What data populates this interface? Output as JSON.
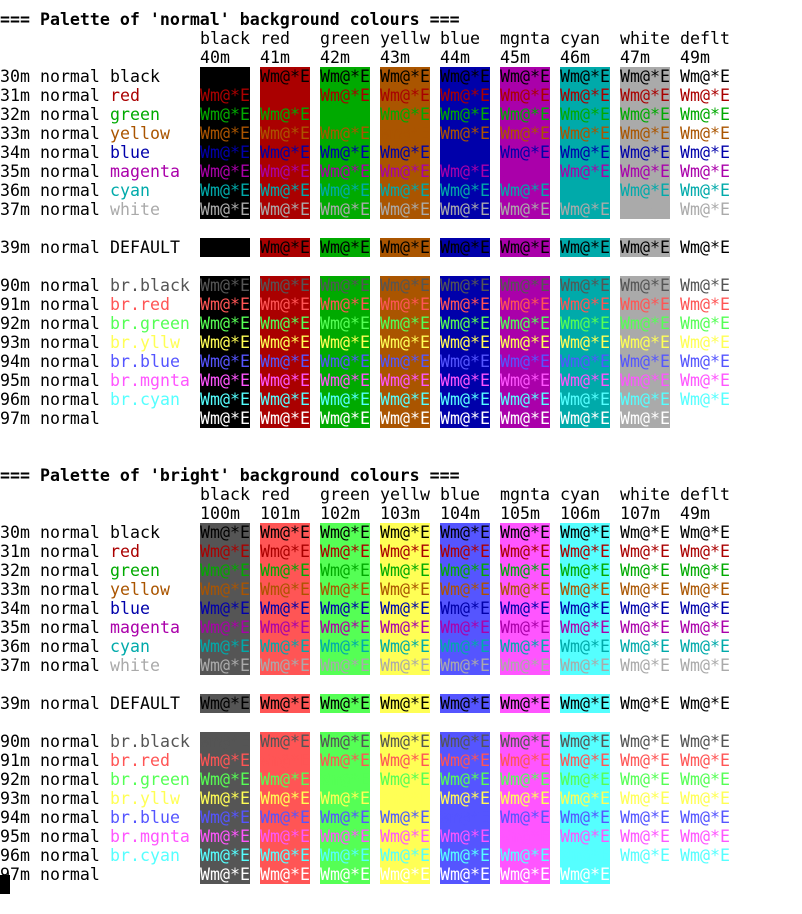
{
  "colors": {
    "palette": {
      "black": "#000000",
      "red": "#aa0000",
      "green": "#00aa00",
      "yellow": "#aa5500",
      "blue": "#0000aa",
      "magenta": "#aa00aa",
      "cyan": "#00aaaa",
      "white": "#aaaaaa",
      "br.black": "#555555",
      "br.red": "#ff5555",
      "br.green": "#55ff55",
      "br.yellow": "#ffff55",
      "br.blue": "#5555ff",
      "br.magenta": "#ff55ff",
      "br.cyan": "#55ffff",
      "br.white": "#ffffff",
      "default_fg": "#000000",
      "default_bg": "#ffffff"
    }
  },
  "sample_text": "Wm@*E",
  "sections": [
    {
      "id": "normal",
      "title": "=== Palette of 'normal' background colours ===",
      "headers": [
        {
          "name": "black",
          "code": "40m"
        },
        {
          "name": "red",
          "code": "41m"
        },
        {
          "name": "green",
          "code": "42m"
        },
        {
          "name": "yellw",
          "code": "43m"
        },
        {
          "name": "blue",
          "code": "44m"
        },
        {
          "name": "mgnta",
          "code": "45m"
        },
        {
          "name": "cyan",
          "code": "46m"
        },
        {
          "name": "white",
          "code": "47m"
        },
        {
          "name": "deflt",
          "code": "49m"
        }
      ],
      "bgs": [
        "black",
        "red",
        "green",
        "yellow",
        "blue",
        "magenta",
        "cyan",
        "white",
        "default_bg"
      ]
    },
    {
      "id": "bright",
      "title": "=== Palette of 'bright' background colours ===",
      "headers": [
        {
          "name": "black",
          "code": "100m"
        },
        {
          "name": "red",
          "code": "101m"
        },
        {
          "name": "green",
          "code": "102m"
        },
        {
          "name": "yellw",
          "code": "103m"
        },
        {
          "name": "blue",
          "code": "104m"
        },
        {
          "name": "mgnta",
          "code": "105m"
        },
        {
          "name": "cyan",
          "code": "106m"
        },
        {
          "name": "white",
          "code": "107m"
        },
        {
          "name": "deflt",
          "code": "49m"
        }
      ],
      "bgs": [
        "br.black",
        "br.red",
        "br.green",
        "br.yellow",
        "br.blue",
        "br.magenta",
        "br.cyan",
        "br.white",
        "default_bg"
      ]
    }
  ],
  "rows": [
    {
      "code": "30m",
      "attr": "normal",
      "name": "black",
      "fg": "black",
      "group": 0
    },
    {
      "code": "31m",
      "attr": "normal",
      "name": "red",
      "fg": "red",
      "group": 0
    },
    {
      "code": "32m",
      "attr": "normal",
      "name": "green",
      "fg": "green",
      "group": 0
    },
    {
      "code": "33m",
      "attr": "normal",
      "name": "yellow",
      "fg": "yellow",
      "group": 0
    },
    {
      "code": "34m",
      "attr": "normal",
      "name": "blue",
      "fg": "blue",
      "group": 0
    },
    {
      "code": "35m",
      "attr": "normal",
      "name": "magenta",
      "fg": "magenta",
      "group": 0
    },
    {
      "code": "36m",
      "attr": "normal",
      "name": "cyan",
      "fg": "cyan",
      "group": 0
    },
    {
      "code": "37m",
      "attr": "normal",
      "name": "white",
      "fg": "white",
      "group": 0
    },
    {
      "code": "39m",
      "attr": "normal",
      "name": "DEFAULT",
      "fg": "default_fg",
      "group": 1
    },
    {
      "code": "90m",
      "attr": "normal",
      "name": "br.black",
      "fg": "br.black",
      "group": 2
    },
    {
      "code": "91m",
      "attr": "normal",
      "name": "br.red",
      "fg": "br.red",
      "group": 2
    },
    {
      "code": "92m",
      "attr": "normal",
      "name": "br.green",
      "fg": "br.green",
      "group": 2
    },
    {
      "code": "93m",
      "attr": "normal",
      "name": "br.yllw",
      "fg": "br.yellow",
      "group": 2
    },
    {
      "code": "94m",
      "attr": "normal",
      "name": "br.blue",
      "fg": "br.blue",
      "group": 2
    },
    {
      "code": "95m",
      "attr": "normal",
      "name": "br.mgnta",
      "fg": "br.magenta",
      "group": 2
    },
    {
      "code": "96m",
      "attr": "normal",
      "name": "br.cyan",
      "fg": "br.cyan",
      "group": 2
    },
    {
      "code": "97m",
      "attr": "normal",
      "name": "",
      "fg": "br.white",
      "group": 2
    }
  ]
}
